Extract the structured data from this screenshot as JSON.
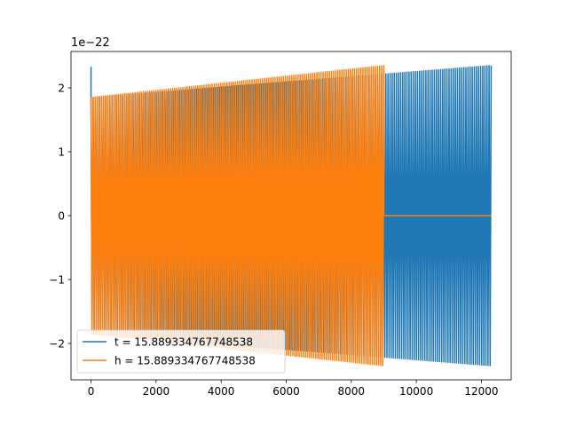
{
  "chart_data": {
    "type": "line",
    "title": "",
    "xlabel": "",
    "ylabel": "",
    "y_offset_label": "1e−22",
    "y_scale": 1e-22,
    "xlim": [
      -615,
      12915
    ],
    "ylim": [
      -2.57,
      2.57
    ],
    "x_ticks": [
      0,
      2000,
      4000,
      6000,
      8000,
      10000,
      12000
    ],
    "x_tick_labels": [
      "0",
      "2000",
      "4000",
      "6000",
      "8000",
      "10000",
      "12000"
    ],
    "y_ticks": [
      -2,
      -1,
      0,
      1,
      2
    ],
    "y_tick_labels": [
      "−2",
      "−1",
      "0",
      "1",
      "2"
    ],
    "grid": false,
    "legend_position": "lower-left",
    "series": [
      {
        "name": "t = 15.889334767748538",
        "color": "#1f77b4",
        "kind": "oscillation",
        "x_start": 0,
        "x_end": 12300,
        "amplitude_start": 1.85,
        "amplitude_end": 2.35,
        "initial_spike": 2.33,
        "cycles": 190
      },
      {
        "name": "h = 15.889334767748538",
        "color": "#ff7f0e",
        "kind": "oscillation-then-flat",
        "x_start": 0,
        "x_end": 9000,
        "flat_until": 12300,
        "flat_value": 0,
        "amplitude_start": 1.85,
        "amplitude_end": 2.35,
        "cycles": 140
      }
    ]
  }
}
